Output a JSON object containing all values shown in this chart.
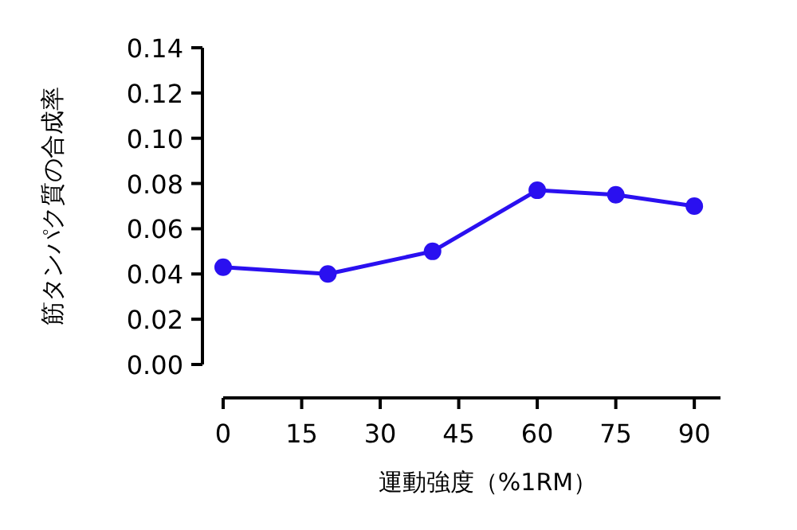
{
  "chart_data": {
    "type": "line",
    "xlabel": "運動強度（%1RM）",
    "ylabel": "筋タンパク質の合成率",
    "x": [
      0,
      20,
      40,
      60,
      75,
      90
    ],
    "series": [
      {
        "color": "#2a10f0",
        "values": [
          0.043,
          0.04,
          0.05,
          0.077,
          0.075,
          0.07
        ]
      }
    ],
    "xlim": [
      0,
      95
    ],
    "xticks": [
      0,
      15,
      30,
      45,
      60,
      75,
      90
    ],
    "ylim": [
      0,
      0.14
    ],
    "yticks": [
      {
        "value": 0,
        "label": "0.00"
      },
      {
        "value": 0.02,
        "label": "0.02"
      },
      {
        "value": 0.04,
        "label": "0.04"
      },
      {
        "value": 0.06,
        "label": "0.06"
      },
      {
        "value": 0.08,
        "label": "0.08"
      },
      {
        "value": 0.1,
        "label": "0.10"
      },
      {
        "value": 0.12,
        "label": "0.12"
      },
      {
        "value": 0.14,
        "label": "0.14"
      }
    ],
    "marker": "circle",
    "line_style": "solid",
    "grid": false
  }
}
